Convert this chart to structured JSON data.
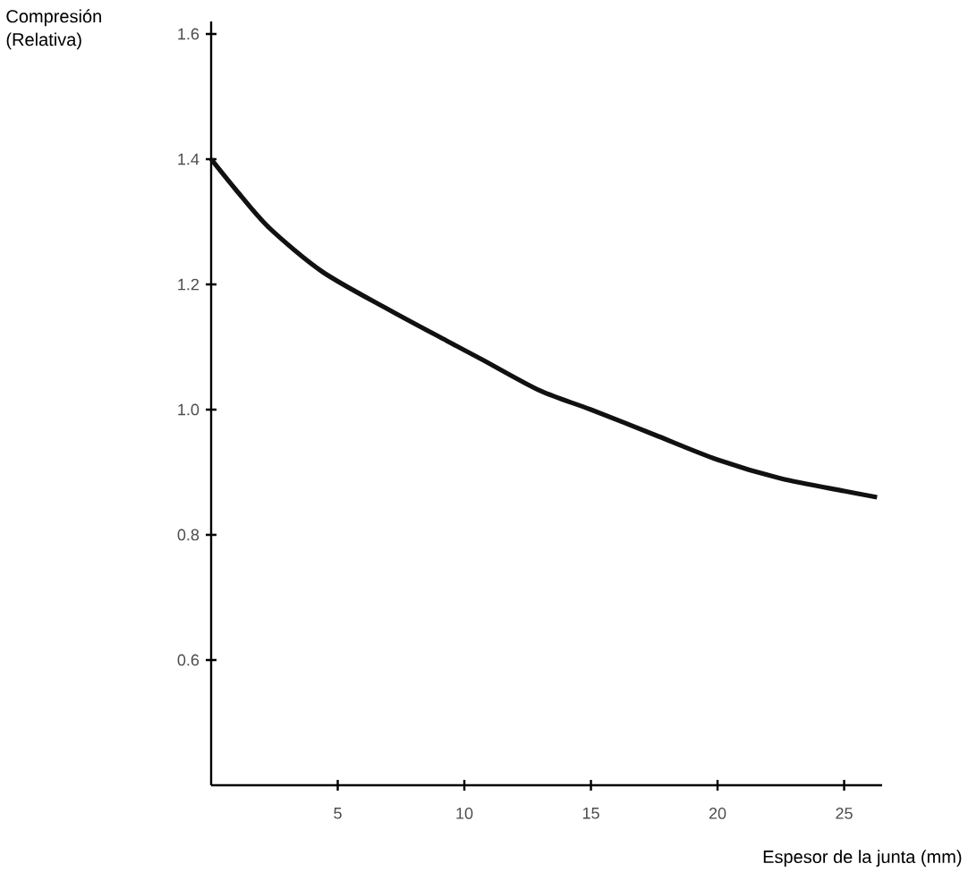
{
  "chart_data": {
    "type": "line",
    "xlabel": "Espesor de la junta (mm)",
    "ylabel": "Compresión\n(Relativa)",
    "x": [
      0,
      1,
      2.3,
      4.4,
      7,
      9.3,
      10.7,
      13,
      15,
      17.5,
      20,
      22.5,
      25,
      26.3
    ],
    "series": [
      {
        "color": "#111111",
        "values": [
          1.4,
          1.35,
          1.29,
          1.22,
          1.16,
          1.11,
          1.08,
          1.03,
          1.0,
          0.96,
          0.92,
          0.89,
          0.87,
          0.86
        ]
      }
    ],
    "xlim": [
      0,
      26.5
    ],
    "ylim": [
      0.4,
      1.62
    ],
    "xticks": [
      5,
      10,
      15,
      20,
      25
    ],
    "yticks": [
      0.6,
      0.8,
      {
        "value": 1.0,
        "label": "1.0"
      },
      1.2,
      1.4,
      1.6
    ],
    "grid": false,
    "legend": false,
    "marker": "none",
    "line_style": "solid"
  }
}
